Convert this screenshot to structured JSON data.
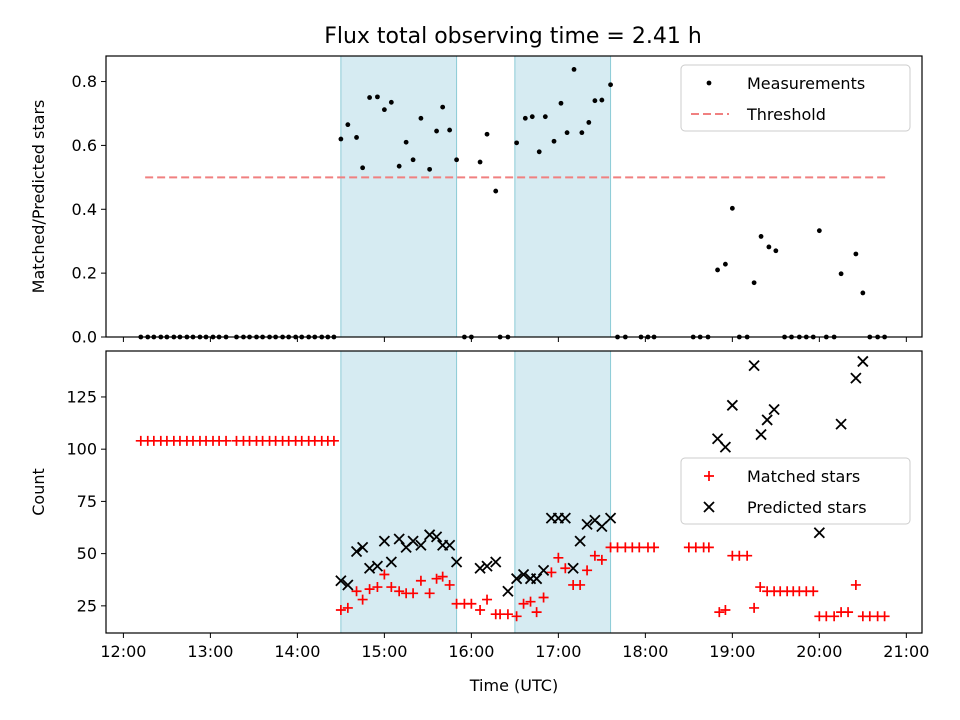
{
  "chart_data": [
    {
      "type": "scatter",
      "title": "Flux total observing time = 2.41 h",
      "ylabel": "Matched/Predicted stars",
      "xlabel": "",
      "xlim": [
        11.8,
        21.18
      ],
      "ylim": [
        0,
        0.88
      ],
      "yticks": [
        0.0,
        0.2,
        0.4,
        0.6,
        0.8
      ],
      "ytick_labels": [
        "0.0",
        "0.2",
        "0.4",
        "0.6",
        "0.8"
      ],
      "shaded_intervals": [
        [
          14.5,
          15.83
        ],
        [
          16.5,
          17.6
        ]
      ],
      "legend": {
        "placement": "upper right",
        "entries": [
          "Measurements",
          "Threshold"
        ]
      },
      "series": [
        {
          "name": "Measurements",
          "marker": "dot",
          "color": "#000000",
          "points": [
            [
              12.2,
              0
            ],
            [
              12.28,
              0
            ],
            [
              12.35,
              0
            ],
            [
              12.43,
              0
            ],
            [
              12.5,
              0
            ],
            [
              12.58,
              0
            ],
            [
              12.65,
              0
            ],
            [
              12.73,
              0
            ],
            [
              12.8,
              0
            ],
            [
              12.88,
              0
            ],
            [
              12.95,
              0
            ],
            [
              13.03,
              0
            ],
            [
              13.1,
              0
            ],
            [
              13.18,
              0
            ],
            [
              13.3,
              0
            ],
            [
              13.38,
              0
            ],
            [
              13.45,
              0
            ],
            [
              13.53,
              0
            ],
            [
              13.6,
              0
            ],
            [
              13.68,
              0
            ],
            [
              13.75,
              0
            ],
            [
              13.83,
              0
            ],
            [
              13.9,
              0
            ],
            [
              13.98,
              0
            ],
            [
              14.05,
              0
            ],
            [
              14.13,
              0
            ],
            [
              14.2,
              0
            ],
            [
              14.28,
              0
            ],
            [
              14.35,
              0
            ],
            [
              14.42,
              0
            ],
            [
              14.5,
              0.62
            ],
            [
              14.58,
              0.665
            ],
            [
              14.68,
              0.625
            ],
            [
              14.75,
              0.53
            ],
            [
              14.83,
              0.75
            ],
            [
              14.92,
              0.752
            ],
            [
              15.0,
              0.712
            ],
            [
              15.08,
              0.735
            ],
            [
              15.17,
              0.535
            ],
            [
              15.25,
              0.61
            ],
            [
              15.33,
              0.555
            ],
            [
              15.42,
              0.685
            ],
            [
              15.52,
              0.525
            ],
            [
              15.6,
              0.645
            ],
            [
              15.67,
              0.72
            ],
            [
              15.75,
              0.648
            ],
            [
              15.83,
              0.555
            ],
            [
              15.92,
              0
            ],
            [
              16.0,
              0
            ],
            [
              16.1,
              0.548
            ],
            [
              16.18,
              0.635
            ],
            [
              16.28,
              0.457
            ],
            [
              16.33,
              0
            ],
            [
              16.42,
              0
            ],
            [
              16.52,
              0.608
            ],
            [
              16.62,
              0.685
            ],
            [
              16.7,
              0.69
            ],
            [
              16.78,
              0.58
            ],
            [
              16.85,
              0.69
            ],
            [
              16.95,
              0.613
            ],
            [
              17.03,
              0.732
            ],
            [
              17.1,
              0.64
            ],
            [
              17.18,
              0.838
            ],
            [
              17.27,
              0.64
            ],
            [
              17.35,
              0.672
            ],
            [
              17.42,
              0.74
            ],
            [
              17.5,
              0.742
            ],
            [
              17.6,
              0.79
            ],
            [
              17.68,
              0
            ],
            [
              17.77,
              0
            ],
            [
              17.95,
              0
            ],
            [
              18.03,
              0
            ],
            [
              18.1,
              0
            ],
            [
              18.55,
              0
            ],
            [
              18.63,
              0
            ],
            [
              18.72,
              0
            ],
            [
              18.83,
              0.21
            ],
            [
              18.92,
              0.228
            ],
            [
              19.0,
              0.403
            ],
            [
              19.08,
              0
            ],
            [
              19.17,
              0
            ],
            [
              19.25,
              0.17
            ],
            [
              19.33,
              0.315
            ],
            [
              19.42,
              0.282
            ],
            [
              19.5,
              0.27
            ],
            [
              19.6,
              0
            ],
            [
              19.68,
              0
            ],
            [
              19.77,
              0
            ],
            [
              19.85,
              0
            ],
            [
              19.93,
              0
            ],
            [
              20.0,
              0.333
            ],
            [
              20.08,
              0
            ],
            [
              20.17,
              0
            ],
            [
              20.25,
              0.198
            ],
            [
              20.42,
              0.26
            ],
            [
              20.5,
              0.138
            ],
            [
              20.58,
              0
            ],
            [
              20.67,
              0
            ],
            [
              20.75,
              0
            ]
          ]
        },
        {
          "name": "Threshold",
          "style": "dashed",
          "color": "#f08080",
          "points": [
            [
              12.25,
              0.5
            ],
            [
              20.8,
              0.5
            ]
          ]
        }
      ]
    },
    {
      "type": "scatter",
      "title": "",
      "xlabel": "Time (UTC)",
      "ylabel": "Count",
      "xlim": [
        11.8,
        21.18
      ],
      "ylim": [
        12,
        147
      ],
      "xticks": [
        12,
        13,
        14,
        15,
        16,
        17,
        18,
        19,
        20,
        21
      ],
      "xtick_labels": [
        "12:00",
        "13:00",
        "14:00",
        "15:00",
        "16:00",
        "17:00",
        "18:00",
        "19:00",
        "20:00",
        "21:00"
      ],
      "yticks": [
        25,
        50,
        75,
        100,
        125
      ],
      "ytick_labels": [
        "25",
        "50",
        "75",
        "100",
        "125"
      ],
      "shaded_intervals": [
        [
          14.5,
          15.83
        ],
        [
          16.5,
          17.6
        ]
      ],
      "legend": {
        "placement": "center right",
        "entries": [
          "Matched stars",
          "Predicted stars"
        ]
      },
      "series": [
        {
          "name": "Matched stars",
          "marker": "plus",
          "color": "#ff0000",
          "points": [
            [
              12.2,
              104
            ],
            [
              12.28,
              104
            ],
            [
              12.35,
              104
            ],
            [
              12.43,
              104
            ],
            [
              12.5,
              104
            ],
            [
              12.58,
              104
            ],
            [
              12.65,
              104
            ],
            [
              12.73,
              104
            ],
            [
              12.8,
              104
            ],
            [
              12.88,
              104
            ],
            [
              12.95,
              104
            ],
            [
              13.03,
              104
            ],
            [
              13.1,
              104
            ],
            [
              13.18,
              104
            ],
            [
              13.3,
              104
            ],
            [
              13.38,
              104
            ],
            [
              13.45,
              104
            ],
            [
              13.53,
              104
            ],
            [
              13.6,
              104
            ],
            [
              13.68,
              104
            ],
            [
              13.75,
              104
            ],
            [
              13.83,
              104
            ],
            [
              13.9,
              104
            ],
            [
              13.98,
              104
            ],
            [
              14.05,
              104
            ],
            [
              14.13,
              104
            ],
            [
              14.2,
              104
            ],
            [
              14.28,
              104
            ],
            [
              14.35,
              104
            ],
            [
              14.42,
              104
            ],
            [
              14.5,
              23
            ],
            [
              14.58,
              24
            ],
            [
              14.68,
              32
            ],
            [
              14.75,
              28
            ],
            [
              14.83,
              33
            ],
            [
              14.92,
              34
            ],
            [
              15.0,
              40
            ],
            [
              15.08,
              34
            ],
            [
              15.17,
              32
            ],
            [
              15.25,
              31
            ],
            [
              15.33,
              31
            ],
            [
              15.42,
              37
            ],
            [
              15.52,
              31
            ],
            [
              15.6,
              38
            ],
            [
              15.67,
              39
            ],
            [
              15.75,
              35
            ],
            [
              15.83,
              26
            ],
            [
              15.92,
              26
            ],
            [
              16.0,
              26
            ],
            [
              16.1,
              23
            ],
            [
              16.18,
              28
            ],
            [
              16.28,
              21
            ],
            [
              16.33,
              21
            ],
            [
              16.42,
              21
            ],
            [
              16.52,
              20
            ],
            [
              16.6,
              26
            ],
            [
              16.68,
              27
            ],
            [
              16.75,
              22
            ],
            [
              16.83,
              29
            ],
            [
              16.92,
              41
            ],
            [
              17.0,
              48
            ],
            [
              17.08,
              43
            ],
            [
              17.17,
              35
            ],
            [
              17.25,
              35
            ],
            [
              17.33,
              42
            ],
            [
              17.42,
              49
            ],
            [
              17.5,
              47
            ],
            [
              17.6,
              53
            ],
            [
              17.68,
              53
            ],
            [
              17.77,
              53
            ],
            [
              17.85,
              53
            ],
            [
              17.93,
              53
            ],
            [
              18.03,
              53
            ],
            [
              18.1,
              53
            ],
            [
              18.5,
              53
            ],
            [
              18.58,
              53
            ],
            [
              18.67,
              53
            ],
            [
              18.73,
              53
            ],
            [
              18.85,
              22
            ],
            [
              18.92,
              23
            ],
            [
              19.0,
              49
            ],
            [
              19.08,
              49
            ],
            [
              19.17,
              49
            ],
            [
              19.25,
              24
            ],
            [
              19.32,
              34
            ],
            [
              19.4,
              32
            ],
            [
              19.48,
              32
            ],
            [
              19.55,
              32
            ],
            [
              19.63,
              32
            ],
            [
              19.7,
              32
            ],
            [
              19.77,
              32
            ],
            [
              19.85,
              32
            ],
            [
              19.93,
              32
            ],
            [
              20.0,
              20
            ],
            [
              20.08,
              20
            ],
            [
              20.17,
              20
            ],
            [
              20.25,
              22
            ],
            [
              20.33,
              22
            ],
            [
              20.42,
              35
            ],
            [
              20.5,
              20
            ],
            [
              20.58,
              20
            ],
            [
              20.67,
              20
            ],
            [
              20.75,
              20
            ]
          ]
        },
        {
          "name": "Predicted stars",
          "marker": "x",
          "color": "#000000",
          "points": [
            [
              14.5,
              37
            ],
            [
              14.58,
              35
            ],
            [
              14.68,
              51
            ],
            [
              14.75,
              53
            ],
            [
              14.83,
              43
            ],
            [
              14.92,
              44
            ],
            [
              15.0,
              56
            ],
            [
              15.08,
              46
            ],
            [
              15.17,
              57
            ],
            [
              15.25,
              53
            ],
            [
              15.33,
              56
            ],
            [
              15.42,
              54
            ],
            [
              15.52,
              59
            ],
            [
              15.6,
              58
            ],
            [
              15.67,
              54
            ],
            [
              15.75,
              54
            ],
            [
              15.83,
              46
            ],
            [
              16.1,
              43
            ],
            [
              16.18,
              44
            ],
            [
              16.28,
              46
            ],
            [
              16.42,
              32
            ],
            [
              16.52,
              38
            ],
            [
              16.6,
              40
            ],
            [
              16.68,
              38
            ],
            [
              16.75,
              38
            ],
            [
              16.83,
              42
            ],
            [
              16.92,
              67
            ],
            [
              17.0,
              67
            ],
            [
              17.08,
              67
            ],
            [
              17.17,
              43
            ],
            [
              17.25,
              56
            ],
            [
              17.33,
              64
            ],
            [
              17.42,
              66
            ],
            [
              17.5,
              63
            ],
            [
              17.6,
              67
            ],
            [
              18.83,
              105
            ],
            [
              18.92,
              101
            ],
            [
              19.0,
              121
            ],
            [
              19.25,
              140
            ],
            [
              19.33,
              107
            ],
            [
              19.4,
              114
            ],
            [
              19.48,
              119
            ],
            [
              20.0,
              60
            ],
            [
              20.25,
              112
            ],
            [
              20.42,
              134
            ],
            [
              20.5,
              142
            ]
          ]
        }
      ]
    }
  ]
}
